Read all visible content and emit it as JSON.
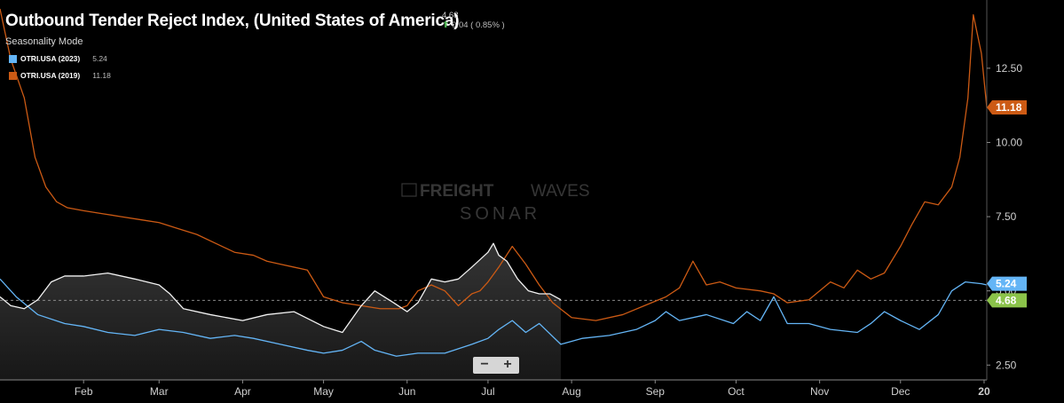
{
  "header": {
    "title": "Outbound Tender Reject Index, (United States of America)",
    "subtitle": "Seasonality Mode",
    "last_value": "4.68",
    "change": "0.04 ( 0.85% )"
  },
  "legend": [
    {
      "label": "OTRI.USA (2023)",
      "value": "5.24",
      "color": "#64b5f6"
    },
    {
      "label": "OTRI.USA (2019)",
      "value": "11.18",
      "color": "#cc5a14"
    }
  ],
  "controls": {
    "zoom_out": "−",
    "zoom_in": "+"
  },
  "chart_data": {
    "type": "line",
    "title": "Outbound Tender Reject Index, (United States of America)",
    "x_ticks": [
      "Feb",
      "Mar",
      "Apr",
      "May",
      "Jun",
      "Jul",
      "Aug",
      "Sep",
      "Oct",
      "Nov",
      "Dec",
      "20"
    ],
    "y_ticks": [
      "2.50",
      "5.00",
      "7.50",
      "10.00",
      "12.50"
    ],
    "ylim": [
      2.0,
      14.5
    ],
    "grid": false,
    "reference_line": 4.68,
    "price_labels": [
      {
        "value": 11.18,
        "text": "11.18",
        "color": "#cc5a14"
      },
      {
        "value": 5.24,
        "text": "5.24",
        "color": "#64b5f6"
      },
      {
        "value": 4.68,
        "text": "4.68",
        "color": "#8bc34a"
      }
    ],
    "series": [
      {
        "name": "OTRI.USA (2019)",
        "color": "#cc5a14",
        "x": [
          "2019-01-01",
          "2019-01-05",
          "2019-01-10",
          "2019-01-14",
          "2019-01-18",
          "2019-01-22",
          "2019-01-26",
          "2019-02-01",
          "2019-02-08",
          "2019-02-15",
          "2019-02-22",
          "2019-03-01",
          "2019-03-08",
          "2019-03-15",
          "2019-03-22",
          "2019-03-29",
          "2019-04-05",
          "2019-04-10",
          "2019-04-15",
          "2019-04-20",
          "2019-04-25",
          "2019-05-01",
          "2019-05-08",
          "2019-05-15",
          "2019-05-22",
          "2019-05-29",
          "2019-06-01",
          "2019-06-05",
          "2019-06-10",
          "2019-06-15",
          "2019-06-20",
          "2019-06-25",
          "2019-06-28",
          "2019-07-01",
          "2019-07-05",
          "2019-07-10",
          "2019-07-15",
          "2019-07-20",
          "2019-07-25",
          "2019-08-01",
          "2019-08-10",
          "2019-08-20",
          "2019-08-28",
          "2019-09-05",
          "2019-09-10",
          "2019-09-15",
          "2019-09-20",
          "2019-09-25",
          "2019-10-01",
          "2019-10-10",
          "2019-10-15",
          "2019-10-20",
          "2019-10-28",
          "2019-11-05",
          "2019-11-10",
          "2019-11-15",
          "2019-11-20",
          "2019-11-25",
          "2019-12-01",
          "2019-12-05",
          "2019-12-10",
          "2019-12-15",
          "2019-12-20",
          "2019-12-23",
          "2019-12-26",
          "2019-12-28",
          "2019-12-31",
          "2020-01-02"
        ],
        "y": [
          14.5,
          12.8,
          11.5,
          9.5,
          8.5,
          8.0,
          7.8,
          7.7,
          7.6,
          7.5,
          7.4,
          7.3,
          7.1,
          6.9,
          6.6,
          6.3,
          6.2,
          6.0,
          5.9,
          5.8,
          5.7,
          4.8,
          4.6,
          4.5,
          4.4,
          4.4,
          4.5,
          5.0,
          5.2,
          5.0,
          4.5,
          4.9,
          5.0,
          5.3,
          5.8,
          6.5,
          5.9,
          5.2,
          4.6,
          4.1,
          4.0,
          4.2,
          4.5,
          4.8,
          5.1,
          6.0,
          5.2,
          5.3,
          5.1,
          5.0,
          4.9,
          4.6,
          4.7,
          5.3,
          5.1,
          5.7,
          5.4,
          5.6,
          6.5,
          7.2,
          8.0,
          7.9,
          8.5,
          9.5,
          11.5,
          14.3,
          13.0,
          11.18
        ]
      },
      {
        "name": "OTRI.USA (2023)",
        "color": "#64b5f6",
        "x": [
          "2019-01-01",
          "2019-01-07",
          "2019-01-15",
          "2019-01-25",
          "2019-02-01",
          "2019-02-10",
          "2019-02-20",
          "2019-03-01",
          "2019-03-10",
          "2019-03-20",
          "2019-03-29",
          "2019-04-05",
          "2019-04-15",
          "2019-04-25",
          "2019-05-01",
          "2019-05-08",
          "2019-05-15",
          "2019-05-20",
          "2019-05-28",
          "2019-06-05",
          "2019-06-15",
          "2019-06-25",
          "2019-07-01",
          "2019-07-05",
          "2019-07-10",
          "2019-07-15",
          "2019-07-20",
          "2019-07-28",
          "2019-08-05",
          "2019-08-15",
          "2019-08-25",
          "2019-09-01",
          "2019-09-05",
          "2019-09-10",
          "2019-09-20",
          "2019-09-30",
          "2019-10-05",
          "2019-10-10",
          "2019-10-15",
          "2019-10-20",
          "2019-10-28",
          "2019-11-05",
          "2019-11-15",
          "2019-11-20",
          "2019-11-25",
          "2019-12-01",
          "2019-12-08",
          "2019-12-15",
          "2019-12-20",
          "2019-12-25",
          "2019-12-31",
          "2020-01-02"
        ],
        "y": [
          5.4,
          4.8,
          4.2,
          3.9,
          3.8,
          3.6,
          3.5,
          3.7,
          3.6,
          3.4,
          3.5,
          3.4,
          3.2,
          3.0,
          2.9,
          3.0,
          3.3,
          3.0,
          2.8,
          2.9,
          2.9,
          3.2,
          3.4,
          3.7,
          4.0,
          3.6,
          3.9,
          3.2,
          3.4,
          3.5,
          3.7,
          4.0,
          4.3,
          4.0,
          4.2,
          3.9,
          4.3,
          4.0,
          4.8,
          3.9,
          3.9,
          3.7,
          3.6,
          3.9,
          4.3,
          4.0,
          3.7,
          4.2,
          5.0,
          5.3,
          5.24,
          5.2
        ]
      },
      {
        "name": "",
        "color": "#f2f2f2",
        "x": [
          "2019-01-01",
          "2019-01-05",
          "2019-01-10",
          "2019-01-15",
          "2019-01-20",
          "2019-01-25",
          "2019-02-01",
          "2019-02-10",
          "2019-02-20",
          "2019-03-01",
          "2019-03-05",
          "2019-03-10",
          "2019-03-20",
          "2019-04-01",
          "2019-04-10",
          "2019-04-20",
          "2019-05-01",
          "2019-05-08",
          "2019-05-15",
          "2019-05-20",
          "2019-05-27",
          "2019-06-01",
          "2019-06-05",
          "2019-06-10",
          "2019-06-15",
          "2019-06-20",
          "2019-06-25",
          "2019-07-01",
          "2019-07-03",
          "2019-07-05",
          "2019-07-08",
          "2019-07-12",
          "2019-07-16",
          "2019-07-20",
          "2019-07-24",
          "2019-07-28"
        ],
        "y": [
          4.8,
          4.5,
          4.4,
          4.7,
          5.3,
          5.5,
          5.5,
          5.6,
          5.4,
          5.2,
          4.9,
          4.4,
          4.2,
          4.0,
          4.2,
          4.3,
          3.8,
          3.6,
          4.5,
          5.0,
          4.6,
          4.3,
          4.6,
          5.4,
          5.3,
          5.4,
          5.8,
          6.3,
          6.6,
          6.2,
          6.0,
          5.4,
          5.0,
          4.9,
          4.9,
          4.7
        ]
      }
    ]
  }
}
